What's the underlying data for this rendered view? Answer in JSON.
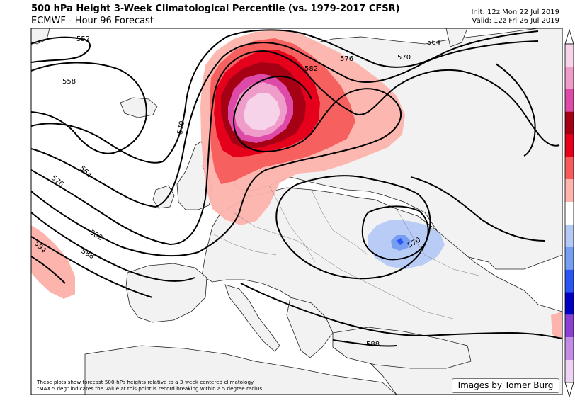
{
  "header": {
    "title": "500 hPa Height 3-Week Climatological Percentile (vs.  1979-2017 CFSR)",
    "subtitle": "ECMWF - Hour 96 Forecast",
    "init": "Init: 12z Mon 22 Jul 2019",
    "valid": "Valid: 12z Fri 26 Jul 2019"
  },
  "map": {
    "contour_labels": [
      "552",
      "558",
      "564",
      "570",
      "576",
      "582",
      "588",
      "594"
    ],
    "footnote_line1": "These plots show forecast 500-hPa heights relative to a 3-week centered climatology.",
    "footnote_line2": "\"MAX 5 deg\" indicates the value at this point is record breaking within a 5 degree radius.",
    "credit": "Images by Tomer Burg"
  },
  "colorbar": {
    "colors": [
      "#f7d3ea",
      "#f09ccb",
      "#dd4aa7",
      "#a50014",
      "#e5001c",
      "#f65c5c",
      "#fcb4ac",
      "#ffffff",
      "#b5c9f6",
      "#779ff1",
      "#2a55f2",
      "#0000c2",
      "#8b40d1",
      "#c28de4",
      "#edd3f4"
    ]
  }
}
